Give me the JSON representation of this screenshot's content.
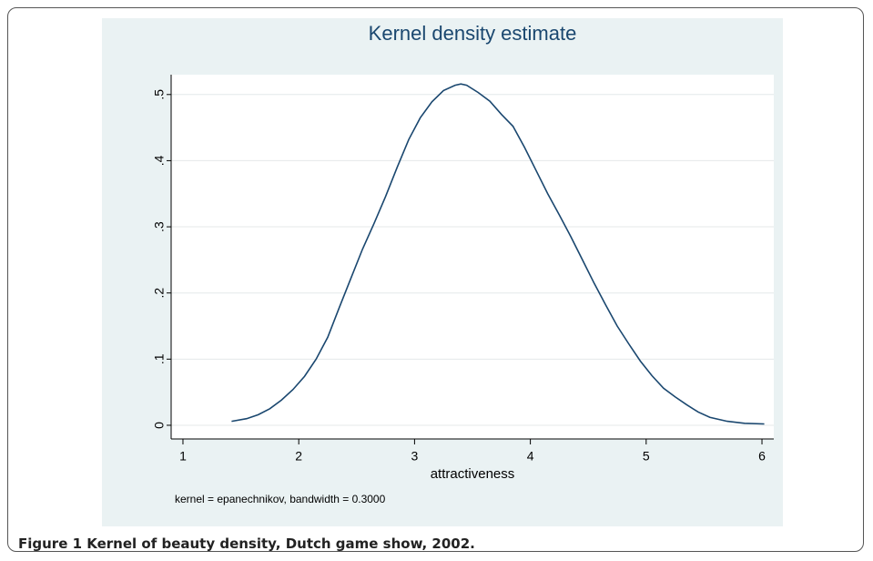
{
  "chart_data": {
    "type": "line",
    "title": "Kernel density estimate",
    "xlabel": "attractiveness",
    "note": "kernel = epanechnikov, bandwidth = 0.3000",
    "x": [
      1.42,
      1.55,
      1.65,
      1.75,
      1.85,
      1.95,
      2.05,
      2.15,
      2.25,
      2.35,
      2.45,
      2.55,
      2.65,
      2.75,
      2.85,
      2.95,
      3.05,
      3.15,
      3.25,
      3.35,
      3.4,
      3.45,
      3.55,
      3.65,
      3.75,
      3.85,
      3.95,
      4.05,
      4.15,
      4.25,
      4.35,
      4.45,
      4.55,
      4.65,
      4.75,
      4.85,
      4.95,
      5.05,
      5.15,
      5.25,
      5.35,
      5.45,
      5.55,
      5.7,
      5.85,
      6.02
    ],
    "values": [
      0.006,
      0.01,
      0.016,
      0.025,
      0.038,
      0.054,
      0.074,
      0.1,
      0.133,
      0.178,
      0.222,
      0.266,
      0.305,
      0.346,
      0.39,
      0.432,
      0.465,
      0.489,
      0.506,
      0.514,
      0.516,
      0.514,
      0.503,
      0.49,
      0.47,
      0.452,
      0.42,
      0.385,
      0.35,
      0.318,
      0.285,
      0.25,
      0.215,
      0.182,
      0.15,
      0.123,
      0.097,
      0.075,
      0.056,
      0.043,
      0.031,
      0.02,
      0.012,
      0.006,
      0.003,
      0.002
    ],
    "color": "#1a476f",
    "xlim": [
      0.898,
      6.102
    ],
    "xticks": [
      1,
      2,
      3,
      4,
      5,
      6
    ],
    "ylim": [
      -0.0207,
      0.53
    ],
    "yticks": [
      0,
      {
        "value": 0.1,
        "label": ".1"
      },
      {
        "value": 0.2,
        "label": ".2"
      },
      {
        "value": 0.3,
        "label": ".3"
      },
      {
        "value": 0.4,
        "label": ".4"
      },
      {
        "value": 0.5,
        "label": ".5"
      }
    ],
    "grid": true
  },
  "caption": "Figure 1 Kernel of beauty density, Dutch game show, 2002."
}
